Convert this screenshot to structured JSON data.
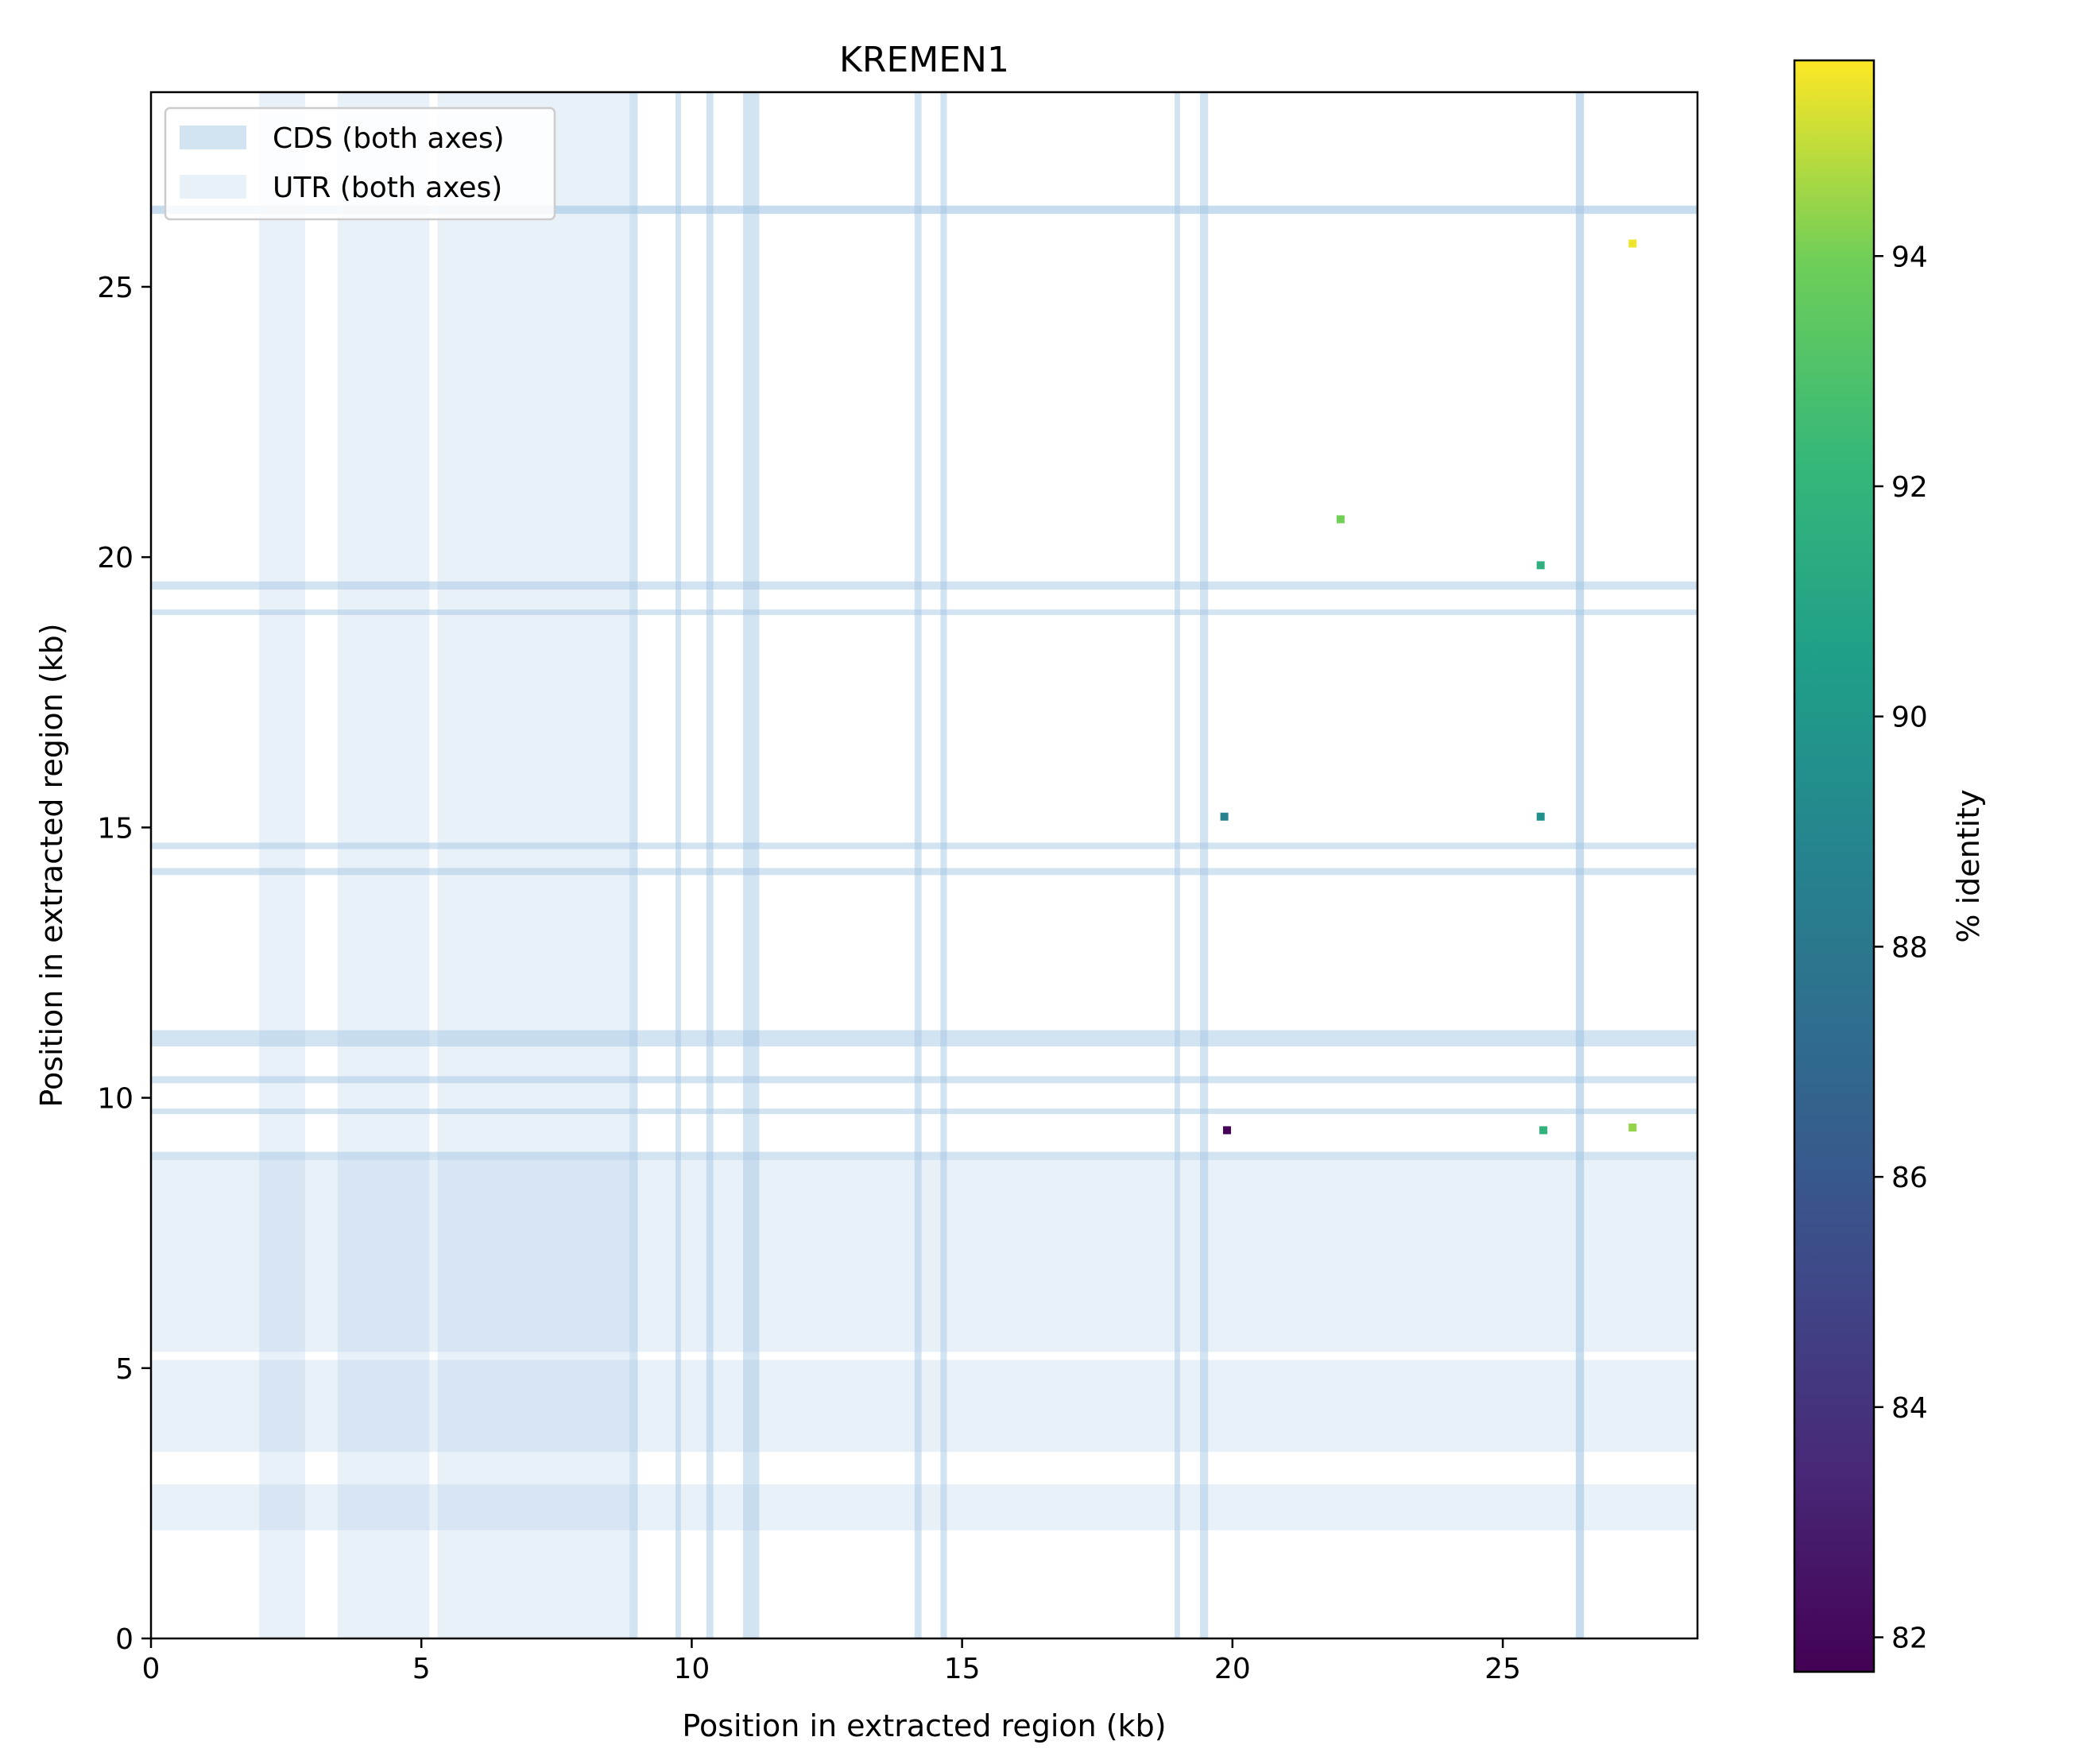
{
  "chart_data": {
    "type": "scatter",
    "title": "KREMEN1",
    "xlabel": "Position in extracted region (kb)",
    "ylabel": "Position in extracted region (kb)",
    "xlim": [
      0,
      28.6
    ],
    "ylim": [
      0,
      28.6
    ],
    "x_ticks": [
      0,
      5,
      10,
      15,
      20,
      25
    ],
    "y_ticks": [
      0,
      5,
      10,
      15,
      20,
      25
    ],
    "grid": false,
    "legend": {
      "placement": "top-left",
      "entries": [
        {
          "label": "CDS (both axes)",
          "color": "#a6c8e3",
          "opacity": 0.5
        },
        {
          "label": "UTR (both axes)",
          "color": "#a6c8e3",
          "opacity": 0.25
        }
      ]
    },
    "cds_intervals_kb": [
      [
        8.85,
        9.0
      ],
      [
        9.7,
        9.8
      ],
      [
        10.27,
        10.4
      ],
      [
        10.95,
        11.25
      ],
      [
        14.12,
        14.25
      ],
      [
        14.6,
        14.72
      ],
      [
        18.93,
        19.03
      ],
      [
        19.4,
        19.55
      ],
      [
        26.35,
        26.5
      ]
    ],
    "utr_intervals_kb": [
      [
        2.0,
        2.85
      ],
      [
        3.45,
        5.15
      ],
      [
        5.3,
        8.85
      ],
      [
        26.35,
        26.5
      ]
    ],
    "series": [
      {
        "x": [
          27.4,
          22.0,
          25.7,
          19.85,
          25.7,
          19.9,
          25.75,
          27.4
        ],
        "y": [
          25.8,
          20.7,
          19.85,
          15.2,
          15.2,
          9.4,
          9.4,
          9.45
        ],
        "identity": [
          95.5,
          94.0,
          91.7,
          88.6,
          89.6,
          81.8,
          91.9,
          94.4
        ]
      }
    ],
    "colorbar": {
      "label": "% identity",
      "colormap": "viridis",
      "min": 81.7,
      "max": 95.7,
      "ticks": [
        82,
        84,
        86,
        88,
        90,
        92,
        94
      ]
    }
  }
}
